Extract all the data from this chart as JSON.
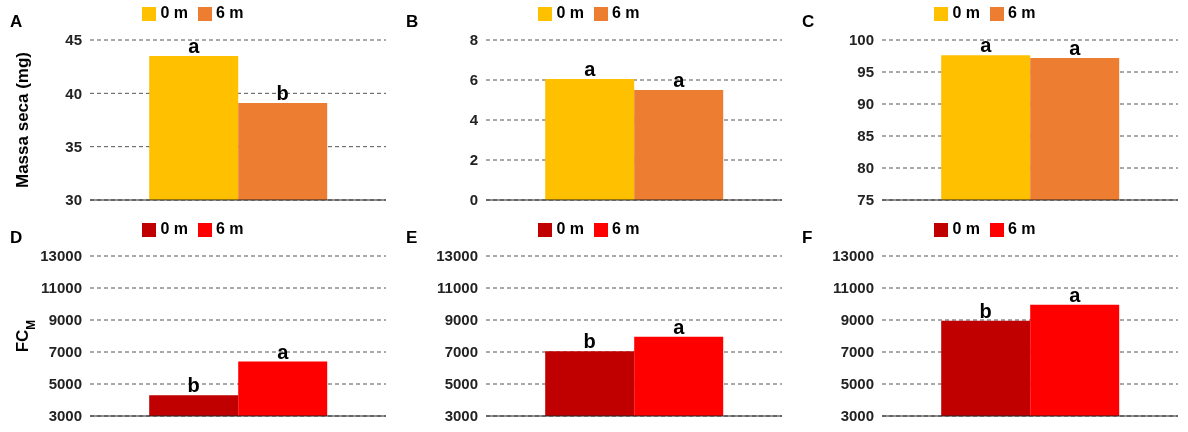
{
  "chart_data": [
    {
      "type": "bar",
      "title": "A",
      "ylabel": "Massa seca (mg)",
      "categories": [
        null
      ],
      "series": [
        {
          "name": "0 m",
          "color": "#ffc000",
          "values": [
            43.5
          ],
          "value_labels": [
            "a"
          ]
        },
        {
          "name": "6 m",
          "color": "#ed7d31",
          "values": [
            39.1
          ],
          "value_labels": [
            "b"
          ]
        }
      ],
      "ylim": [
        30,
        45
      ],
      "yticks": [
        30,
        35,
        40,
        45
      ],
      "grid": "y",
      "legend": "top"
    },
    {
      "type": "bar",
      "title": "B",
      "categories": [
        null
      ],
      "series": [
        {
          "name": "0 m",
          "color": "#ffc000",
          "values": [
            6.05
          ],
          "value_labels": [
            "a"
          ]
        },
        {
          "name": "6 m",
          "color": "#ed7d31",
          "values": [
            5.5
          ],
          "value_labels": [
            "a"
          ]
        }
      ],
      "ylim": [
        0,
        8
      ],
      "yticks": [
        0,
        2,
        4,
        6,
        8
      ],
      "grid": "y",
      "legend": "top"
    },
    {
      "type": "bar",
      "title": "C",
      "categories": [
        null
      ],
      "series": [
        {
          "name": "0 m",
          "color": "#ffc000",
          "values": [
            97.6
          ],
          "value_labels": [
            "a"
          ]
        },
        {
          "name": "6 m",
          "color": "#ed7d31",
          "values": [
            97.2
          ],
          "value_labels": [
            "a"
          ]
        }
      ],
      "ylim": [
        75,
        100
      ],
      "yticks": [
        75,
        80,
        85,
        90,
        95,
        100
      ],
      "grid": "y",
      "legend": "top"
    },
    {
      "type": "bar",
      "title": "D",
      "ylabel": "FC$_{M}$",
      "categories": [
        null
      ],
      "series": [
        {
          "name": "0 m",
          "color": "#c00000",
          "values": [
            4300
          ],
          "value_labels": [
            "b"
          ]
        },
        {
          "name": "6 m",
          "color": "#ff0000",
          "values": [
            6400
          ],
          "value_labels": [
            "a"
          ]
        }
      ],
      "ylim": [
        3000,
        13000
      ],
      "yticks": [
        3000,
        5000,
        7000,
        9000,
        11000,
        13000
      ],
      "grid": "y",
      "legend": "top"
    },
    {
      "type": "bar",
      "title": "E",
      "categories": [
        null
      ],
      "series": [
        {
          "name": "0 m",
          "color": "#c00000",
          "values": [
            7050
          ],
          "value_labels": [
            "b"
          ]
        },
        {
          "name": "6 m",
          "color": "#ff0000",
          "values": [
            7950
          ],
          "value_labels": [
            "a"
          ]
        }
      ],
      "ylim": [
        3000,
        13000
      ],
      "yticks": [
        3000,
        5000,
        7000,
        9000,
        11000,
        13000
      ],
      "grid": "y",
      "legend": "top"
    },
    {
      "type": "bar",
      "title": "F",
      "categories": [
        null
      ],
      "series": [
        {
          "name": "0 m",
          "color": "#c00000",
          "values": [
            8950
          ],
          "value_labels": [
            "b"
          ]
        },
        {
          "name": "6 m",
          "color": "#ff0000",
          "values": [
            9950
          ],
          "value_labels": [
            "a"
          ]
        }
      ],
      "ylim": [
        3000,
        13000
      ],
      "yticks": [
        3000,
        5000,
        7000,
        9000,
        11000,
        13000
      ],
      "grid": "y",
      "legend": "top"
    }
  ]
}
